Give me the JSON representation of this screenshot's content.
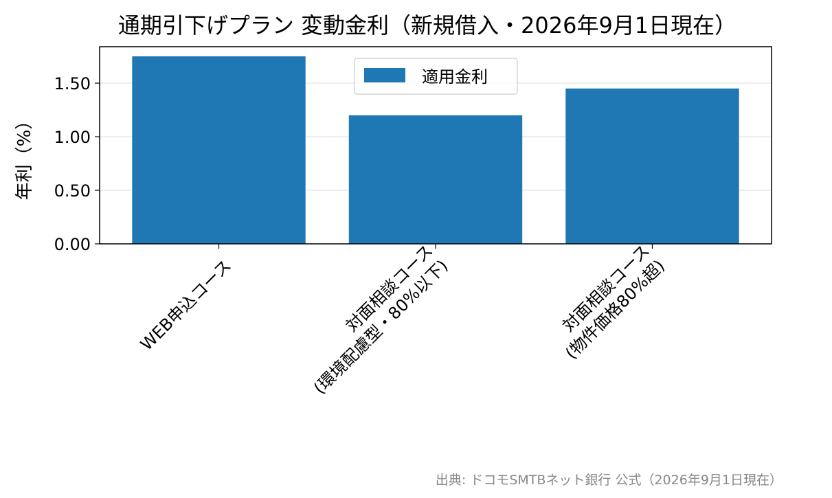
{
  "chart_data": {
    "type": "bar",
    "title": "通期引下げプラン 変動金利（新規借入・2026年9月1日現在）",
    "xlabel": "",
    "ylabel": "年利（%）",
    "categories": [
      [
        "WEB申込コース"
      ],
      [
        "対面相談コース",
        "(環境配慮型・80%以下)"
      ],
      [
        "対面相談コース",
        "(物件価格80%超)"
      ]
    ],
    "series": [
      {
        "name": "適用金利",
        "values": [
          1.75,
          1.2,
          1.45
        ],
        "color": "#1f77b4"
      }
    ],
    "ylim": [
      0,
      1.84
    ],
    "yticks": [
      "0.00",
      "0.50",
      "1.00",
      "1.50"
    ],
    "grid": "horizontal",
    "legend": "top-center"
  },
  "source_note": "出典: ドコモSMTBネット銀行 公式（2026年9月1日現在）"
}
